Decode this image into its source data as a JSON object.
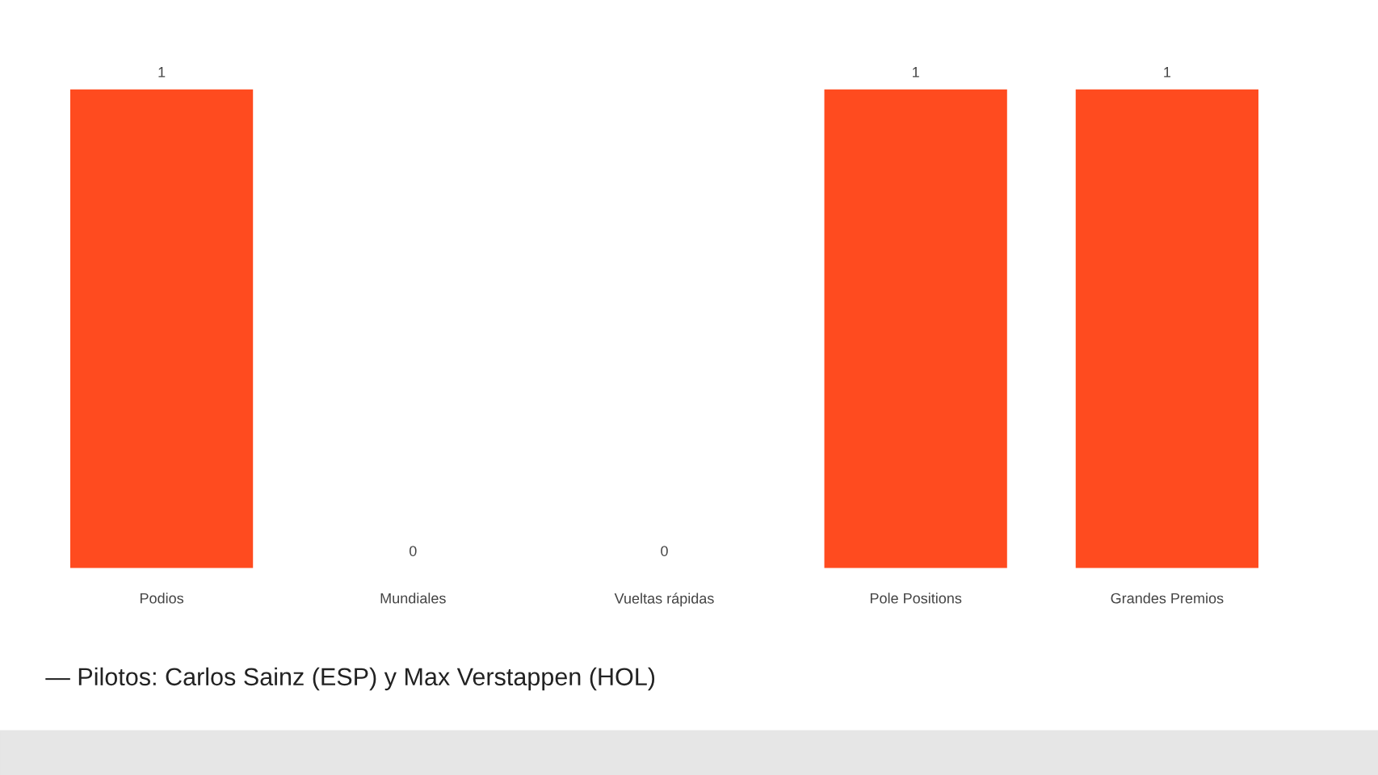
{
  "chart_data": {
    "type": "bar",
    "categories": [
      "Podios",
      "Mundiales",
      "Vueltas rápidas",
      "Pole Positions",
      "Grandes Premios"
    ],
    "values": [
      1,
      0,
      0,
      1,
      1
    ],
    "color": "#ff4b1f",
    "data_labels": true,
    "grid": false,
    "annotations": [
      "— Pilotos: Carlos Sainz (ESP) y Max Verstappen (HOL)"
    ]
  }
}
